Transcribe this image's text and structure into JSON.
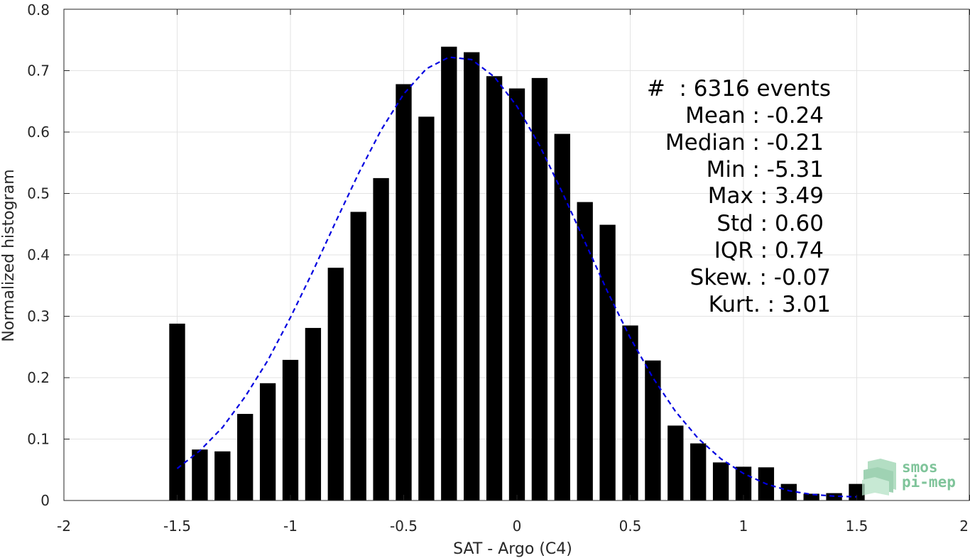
{
  "chart_data": {
    "type": "bar",
    "xlabel": "SAT - Argo (C4)",
    "ylabel": "Normalized histogram",
    "xlim": [
      -2,
      2
    ],
    "ylim": [
      0,
      0.8
    ],
    "grid": true,
    "x_ticks": [
      -2,
      -1.5,
      -1,
      -0.5,
      0,
      0.5,
      1,
      1.5,
      2
    ],
    "x_tick_labels": [
      "-2",
      "-1.5",
      "-1",
      "-0.5",
      "0",
      "0.5",
      "1",
      "1.5",
      "2"
    ],
    "y_ticks": [
      0,
      0.1,
      0.2,
      0.3,
      0.4,
      0.5,
      0.6,
      0.7,
      0.8
    ],
    "y_tick_labels": [
      "0",
      "0.1",
      "0.2",
      "0.3",
      "0.4",
      "0.5",
      "0.6",
      "0.7",
      "0.8"
    ],
    "bar_color": "#000000",
    "bar_width": 0.07,
    "bars": {
      "x": [
        -1.5,
        -1.4,
        -1.3,
        -1.2,
        -1.1,
        -1.0,
        -0.9,
        -0.8,
        -0.7,
        -0.6,
        -0.5,
        -0.4,
        -0.3,
        -0.2,
        -0.1,
        0.0,
        0.1,
        0.2,
        0.3,
        0.4,
        0.5,
        0.6,
        0.7,
        0.8,
        0.9,
        1.0,
        1.1,
        1.2,
        1.3,
        1.4,
        1.5
      ],
      "values": [
        0.288,
        0.083,
        0.08,
        0.141,
        0.191,
        0.229,
        0.281,
        0.379,
        0.47,
        0.525,
        0.678,
        0.625,
        0.739,
        0.73,
        0.691,
        0.671,
        0.688,
        0.597,
        0.486,
        0.449,
        0.285,
        0.228,
        0.122,
        0.093,
        0.062,
        0.055,
        0.054,
        0.027,
        0.011,
        0.012,
        0.027
      ]
    },
    "fit": {
      "style": "dashed",
      "color": "#0000e0",
      "x": [
        -1.5,
        -1.4,
        -1.3,
        -1.2,
        -1.1,
        -1.0,
        -0.9,
        -0.8,
        -0.7,
        -0.6,
        -0.5,
        -0.4,
        -0.3,
        -0.2,
        -0.1,
        0.0,
        0.1,
        0.2,
        0.3,
        0.4,
        0.5,
        0.6,
        0.7,
        0.8,
        0.9,
        1.0,
        1.1,
        1.2,
        1.3,
        1.4,
        1.5
      ],
      "y": [
        0.052,
        0.081,
        0.119,
        0.169,
        0.228,
        0.298,
        0.374,
        0.454,
        0.532,
        0.603,
        0.662,
        0.703,
        0.722,
        0.718,
        0.69,
        0.642,
        0.578,
        0.502,
        0.421,
        0.34,
        0.265,
        0.2,
        0.145,
        0.101,
        0.068,
        0.044,
        0.027,
        0.016,
        0.01,
        0.007,
        0.006
      ]
    }
  },
  "stats": [
    {
      "label": "#  : 6316 events"
    },
    {
      "label": "Mean : -0.24"
    },
    {
      "label": "Median : -0.21"
    },
    {
      "label": "Min : -5.31"
    },
    {
      "label": "Max : 3.49"
    },
    {
      "label": "Std : 0.60"
    },
    {
      "label": "IQR : 0.74"
    },
    {
      "label": "Skew. : -0.07"
    },
    {
      "label": "Kurt. : 3.01"
    }
  ],
  "logo": {
    "line1": "smos",
    "line2": "pi-mep",
    "color": "#7fc49a"
  }
}
